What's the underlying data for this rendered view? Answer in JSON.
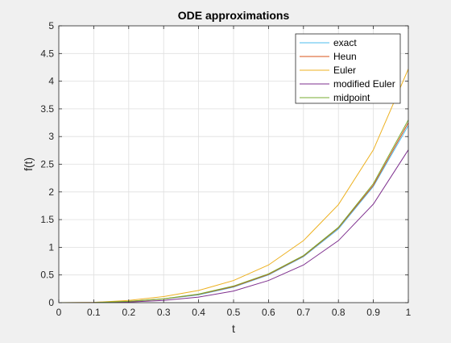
{
  "chart_data": {
    "type": "line",
    "title": "ODE approximations",
    "xlabel": "t",
    "ylabel": "f(t)",
    "xlim": [
      0,
      1
    ],
    "ylim": [
      0,
      5
    ],
    "x_ticks": [
      0,
      0.1,
      0.2,
      0.3,
      0.4,
      0.5,
      0.6,
      0.7,
      0.8,
      0.9,
      1
    ],
    "x_tick_labels": [
      "0",
      "0.1",
      "0.2",
      "0.3",
      "0.4",
      "0.5",
      "0.6",
      "0.7",
      "0.8",
      "0.9",
      "1"
    ],
    "y_ticks": [
      0,
      0.5,
      1,
      1.5,
      2,
      2.5,
      3,
      3.5,
      4,
      4.5,
      5
    ],
    "y_tick_labels": [
      "0",
      "0.5",
      "1",
      "1.5",
      "2",
      "2.5",
      "3",
      "3.5",
      "4",
      "4.5",
      "5"
    ],
    "grid": true,
    "legend_position": "top-right",
    "x": [
      0,
      0.1,
      0.2,
      0.3,
      0.4,
      0.5,
      0.6,
      0.7,
      0.8,
      0.9,
      1
    ],
    "series": [
      {
        "name": "exact",
        "color": "#4dbeee",
        "values": [
          0,
          0.002,
          0.02,
          0.065,
          0.14,
          0.28,
          0.5,
          0.83,
          1.33,
          2.1,
          3.2
        ]
      },
      {
        "name": "Heun",
        "color": "#d95319",
        "values": [
          0,
          0.002,
          0.022,
          0.068,
          0.15,
          0.29,
          0.51,
          0.84,
          1.35,
          2.12,
          3.25
        ]
      },
      {
        "name": "Euler",
        "color": "#edb120",
        "values": [
          0,
          0.005,
          0.04,
          0.11,
          0.22,
          0.4,
          0.68,
          1.12,
          1.77,
          2.76,
          4.22
        ]
      },
      {
        "name": "modified Euler",
        "color": "#7e2f8e",
        "values": [
          0,
          0.001,
          0.01,
          0.04,
          0.1,
          0.21,
          0.4,
          0.68,
          1.12,
          1.78,
          2.76
        ]
      },
      {
        "name": "midpoint",
        "color": "#77ac30",
        "values": [
          0,
          0.002,
          0.023,
          0.07,
          0.155,
          0.3,
          0.52,
          0.85,
          1.36,
          2.15,
          3.3
        ]
      }
    ]
  }
}
